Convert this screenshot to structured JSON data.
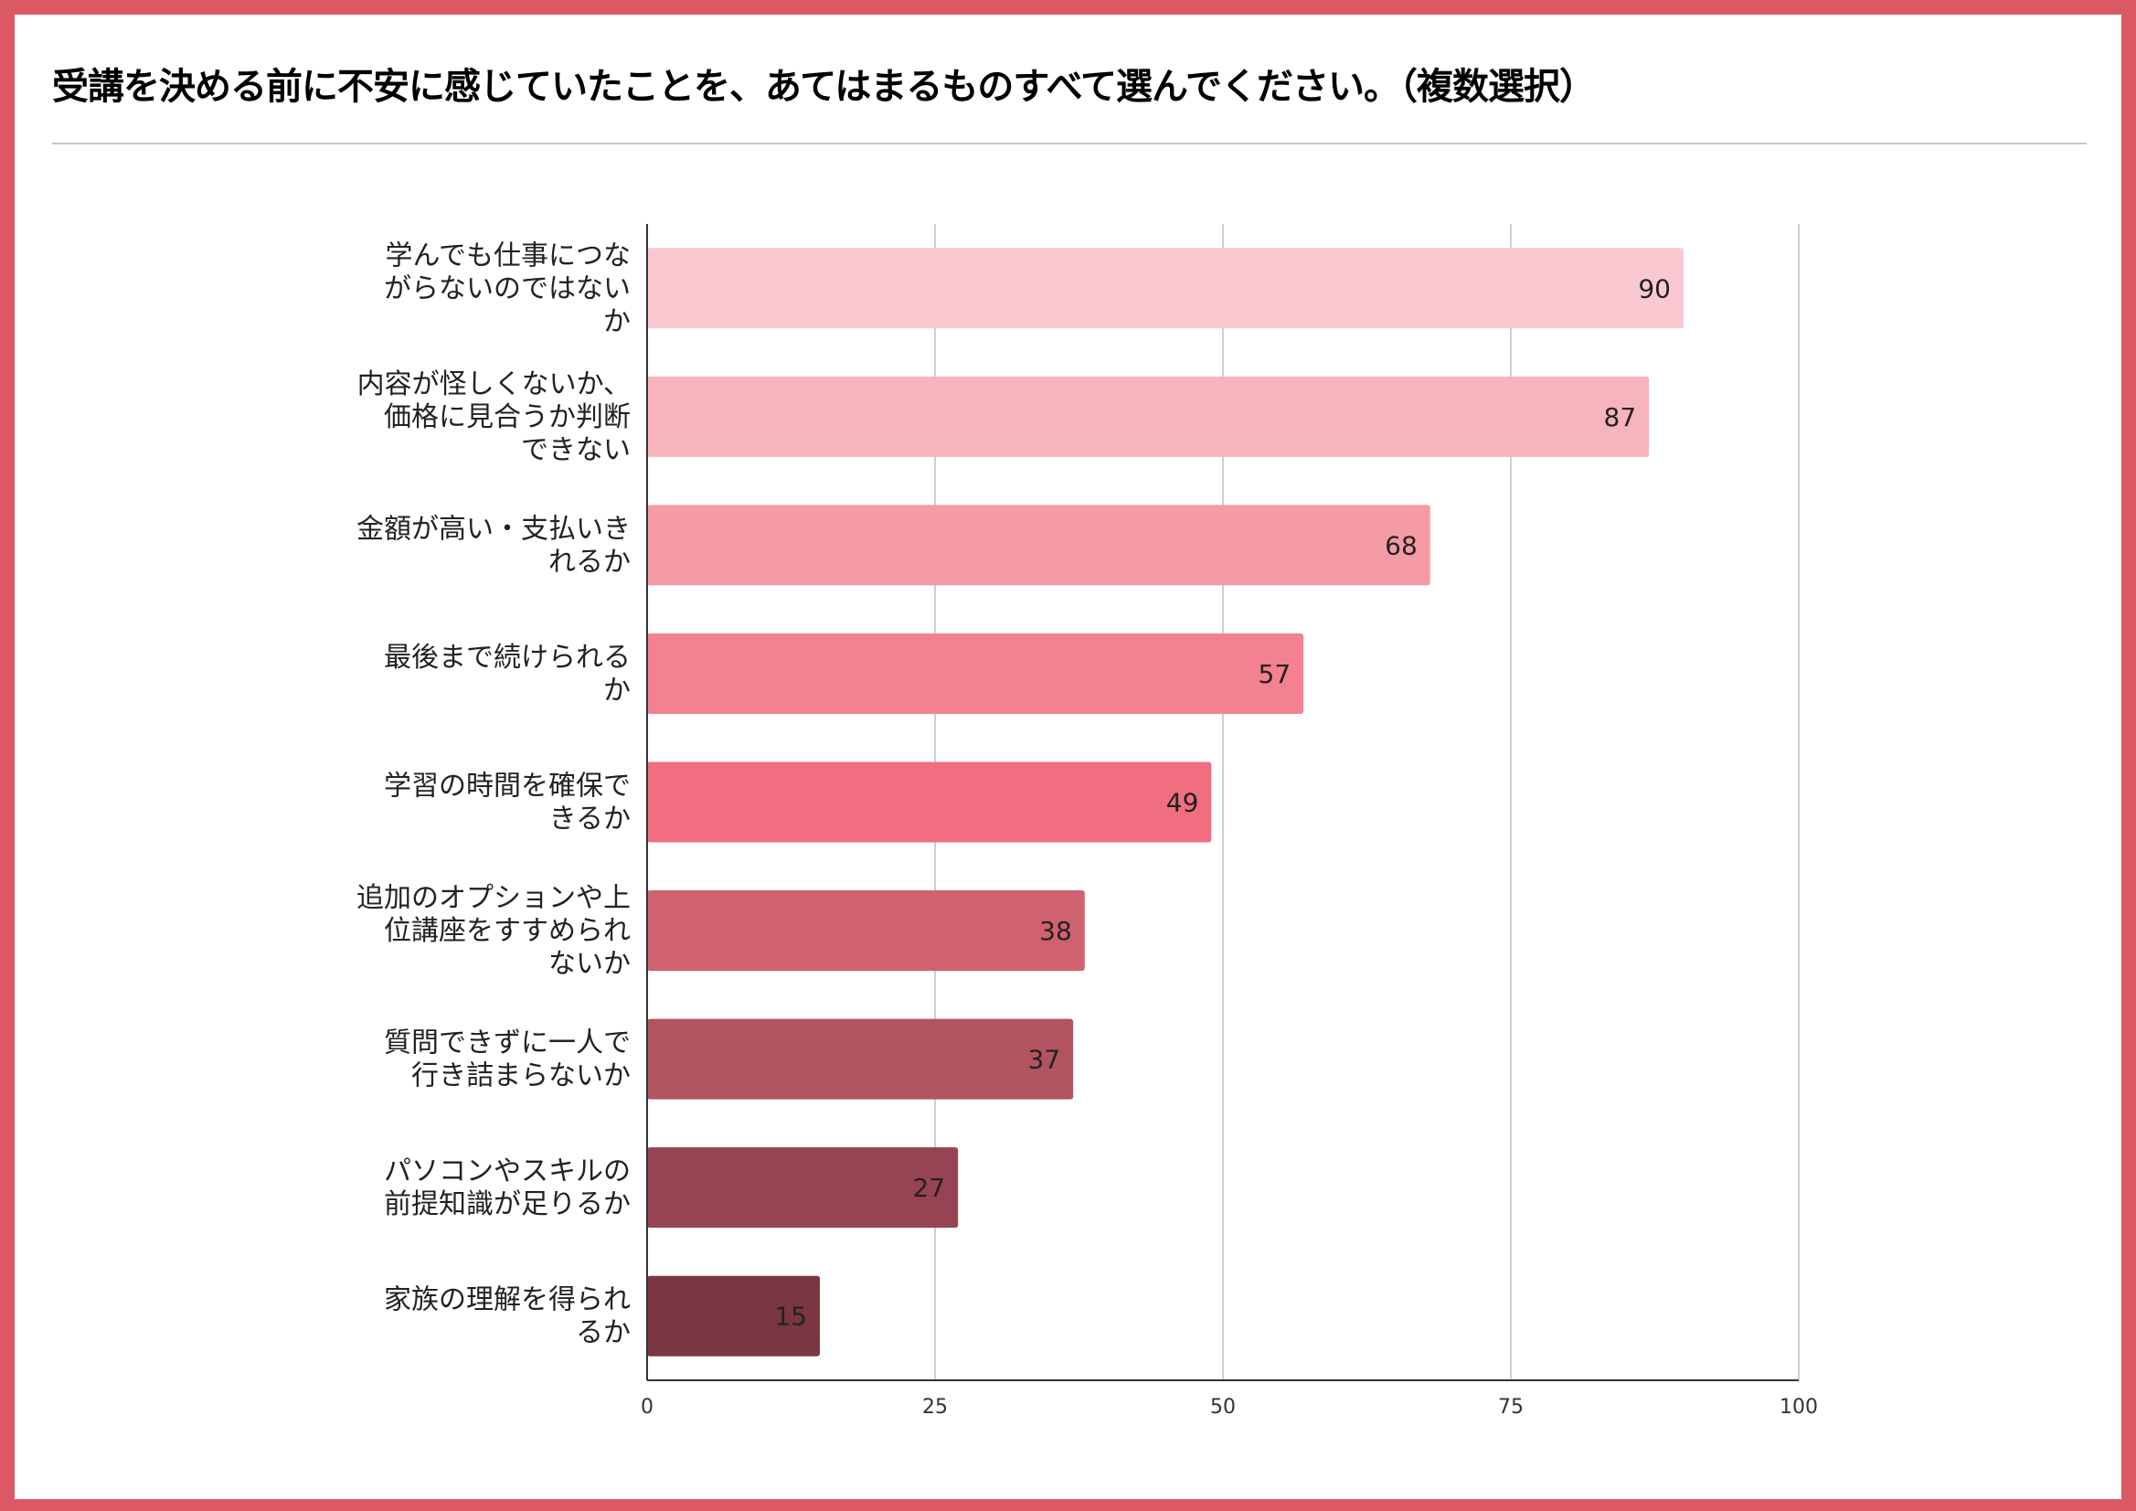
{
  "title": "受講を決める前に不安に感じていたことを、あてはまるものすべて選んでください。（複数選択）",
  "colors": {
    "frame": "#dc5a64"
  },
  "chart_data": {
    "type": "bar",
    "orientation": "horizontal",
    "categories": [
      [
        "学んでも仕事につな",
        "がらないのではない",
        "か"
      ],
      [
        "内容が怪しくないか、",
        "価格に見合うか判断",
        "できない"
      ],
      [
        "金額が高い・支払いき",
        "れるか"
      ],
      [
        "最後まで続けられる",
        "か"
      ],
      [
        "学習の時間を確保で",
        "きるか"
      ],
      [
        "追加のオプションや上",
        "位講座をすすめられ",
        "ないか"
      ],
      [
        "質問できずに一人で",
        "行き詰まらないか"
      ],
      [
        "パソコンやスキルの",
        "前提知識が足りるか"
      ],
      [
        "家族の理解を得られ",
        "るか"
      ]
    ],
    "values": [
      90,
      87,
      68,
      57,
      49,
      38,
      37,
      27,
      15
    ],
    "data_labels": [
      "90",
      "87",
      "68",
      "57",
      "49",
      "38",
      "37",
      "27",
      "15"
    ],
    "bar_colors": [
      "#fac8d0",
      "#f8b4bd",
      "#f59ba6",
      "#f3818f",
      "#f06e80",
      "#d0616e",
      "#b25460",
      "#964452",
      "#7a3741"
    ],
    "xlim": [
      0,
      100
    ],
    "xticks": [
      0,
      25,
      50,
      75,
      100
    ],
    "xtick_labels": [
      "0",
      "25",
      "50",
      "75",
      "100"
    ],
    "grid": true,
    "legend": "none",
    "xlabel": "",
    "ylabel": ""
  }
}
